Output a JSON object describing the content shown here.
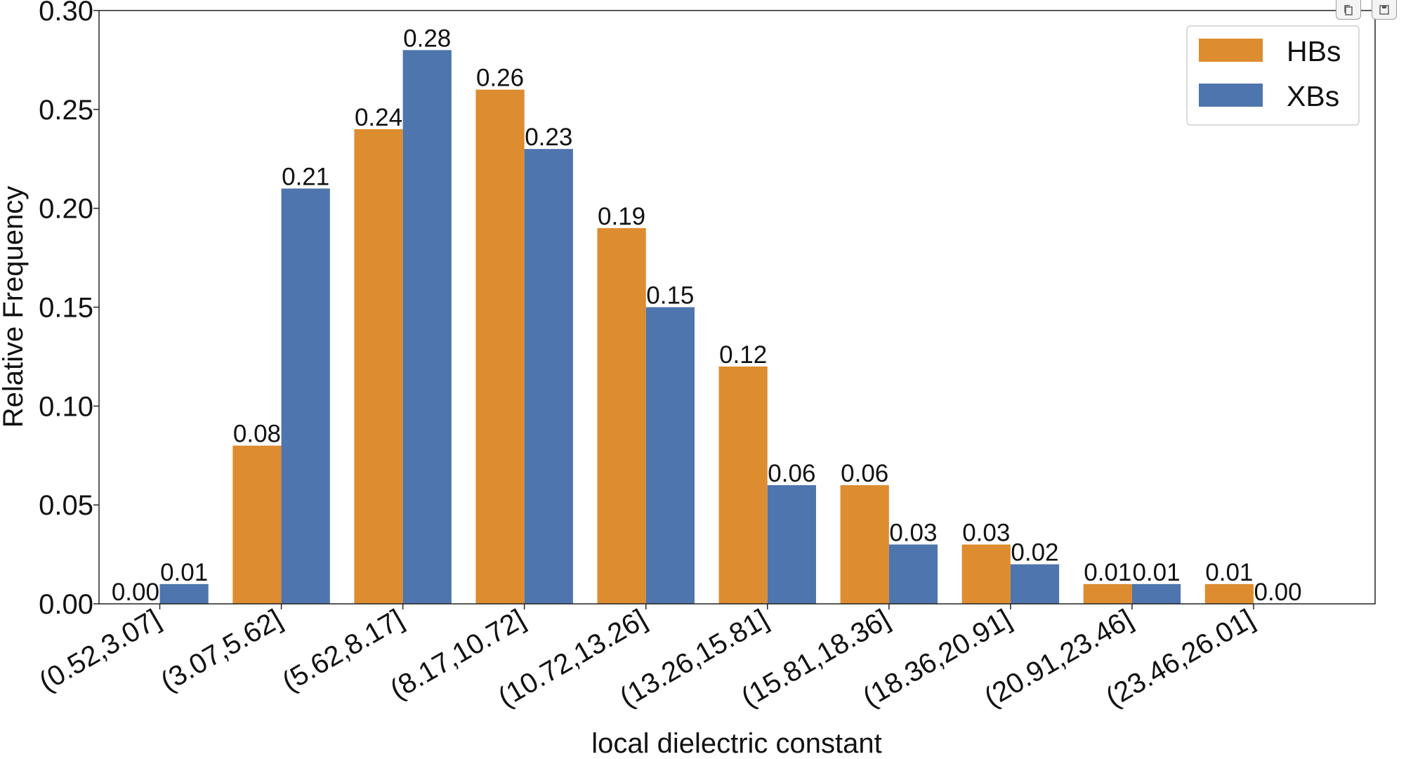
{
  "chart_data": {
    "type": "bar",
    "xlabel": "local dielectric constant",
    "ylabel": "Relative Frequency",
    "categories": [
      "(0.52,3.07]",
      "(3.07,5.62]",
      "(5.62,8.17]",
      "(8.17,10.72]",
      "(10.72,13.26]",
      "(13.26,15.81]",
      "(15.81,18.36]",
      "(18.36,20.91]",
      "(20.91,23.46]",
      "(23.46,26.01]"
    ],
    "series": [
      {
        "name": "HBs",
        "color": "#dd8c30",
        "values": [
          0.0,
          0.08,
          0.24,
          0.26,
          0.19,
          0.12,
          0.06,
          0.03,
          0.01,
          0.01
        ],
        "labels": [
          "0.00",
          "0.08",
          "0.24",
          "0.26",
          "0.19",
          "0.12",
          "0.06",
          "0.03",
          "0.01",
          "0.01"
        ]
      },
      {
        "name": "XBs",
        "color": "#4e75ad",
        "values": [
          0.01,
          0.21,
          0.28,
          0.23,
          0.15,
          0.06,
          0.03,
          0.02,
          0.01,
          0.0
        ],
        "labels": [
          "0.01",
          "0.21",
          "0.28",
          "0.23",
          "0.15",
          "0.06",
          "0.03",
          "0.02",
          "0.01",
          "0.00"
        ]
      }
    ],
    "ylim": [
      0,
      0.3
    ],
    "yticks": [
      "0.00",
      "0.05",
      "0.10",
      "0.15",
      "0.20",
      "0.25",
      "0.30"
    ],
    "legend_position": "top-right",
    "grid": false
  },
  "toolbar": {
    "icons": [
      "copy-icon",
      "save-icon"
    ]
  }
}
